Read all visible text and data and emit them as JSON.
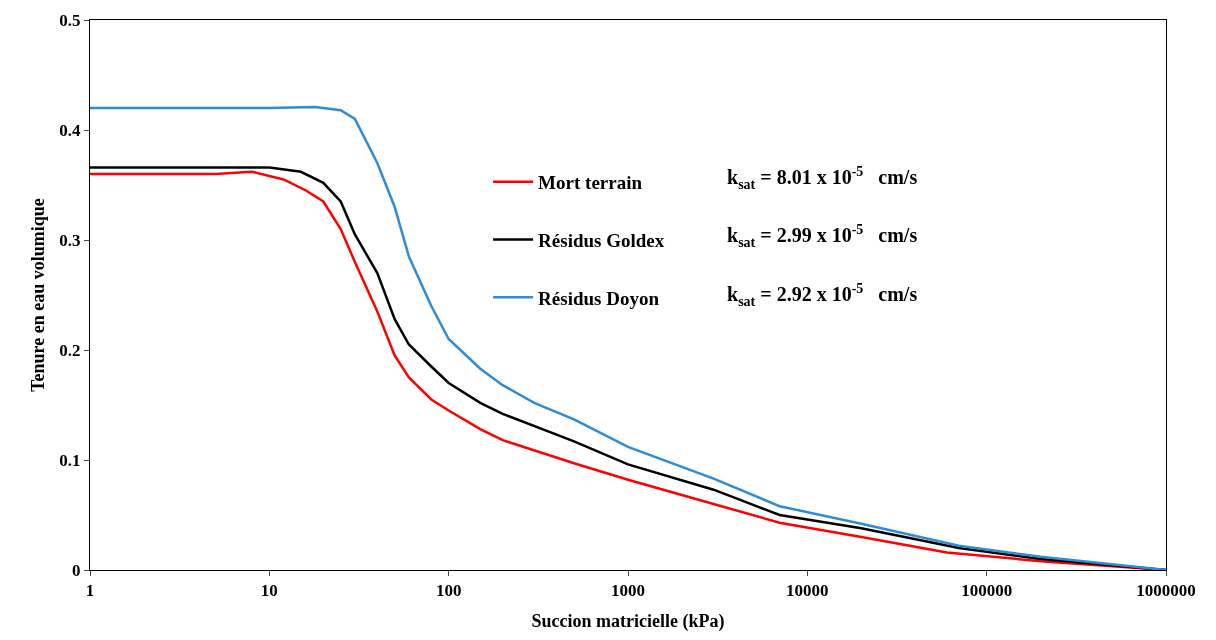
{
  "chart_data": {
    "type": "line",
    "xlabel": "Succion matricielle (kPa)",
    "ylabel": "Tenure en eau volumique",
    "log": "x",
    "xlim": [
      1,
      1000000
    ],
    "xticks": [
      1,
      10,
      100,
      1000,
      10000,
      100000,
      1000000
    ],
    "ylim": [
      0,
      0.5
    ],
    "yticks": [
      0,
      0.1,
      0.2,
      0.3,
      0.4,
      0.5
    ],
    "legend": "right",
    "marker": "none",
    "line_style": "solid",
    "series": [
      {
        "name": "Mort terrain",
        "color": "#ff0000",
        "x": [
          1,
          5,
          8,
          12,
          16,
          20,
          25,
          30,
          40,
          50,
          60,
          80,
          100,
          150,
          200,
          500,
          1000,
          3000,
          7000,
          20000,
          60000,
          200000,
          1000000
        ],
        "values": [
          0.36,
          0.36,
          0.362,
          0.355,
          0.345,
          0.335,
          0.31,
          0.28,
          0.235,
          0.195,
          0.175,
          0.155,
          0.145,
          0.128,
          0.118,
          0.097,
          0.082,
          0.06,
          0.043,
          0.03,
          0.016,
          0.008,
          0
        ]
      },
      {
        "name": "Résidus Goldex",
        "color": "#000000",
        "x": [
          1,
          10,
          15,
          20,
          25,
          30,
          40,
          50,
          60,
          80,
          100,
          150,
          200,
          500,
          1000,
          3000,
          7000,
          20000,
          70000,
          200000,
          1000000
        ],
        "values": [
          0.366,
          0.366,
          0.362,
          0.352,
          0.335,
          0.305,
          0.27,
          0.228,
          0.205,
          0.185,
          0.17,
          0.152,
          0.142,
          0.117,
          0.096,
          0.073,
          0.05,
          0.038,
          0.02,
          0.01,
          0
        ]
      },
      {
        "name": "Résidus Doyon",
        "color": "#2e8bd6",
        "x": [
          1,
          10,
          18,
          25,
          30,
          40,
          50,
          60,
          80,
          100,
          150,
          200,
          300,
          500,
          1000,
          3000,
          7000,
          20000,
          70000,
          200000,
          1000000
        ],
        "values": [
          0.42,
          0.42,
          0.421,
          0.418,
          0.41,
          0.37,
          0.33,
          0.285,
          0.24,
          0.21,
          0.183,
          0.168,
          0.152,
          0.137,
          0.112,
          0.083,
          0.058,
          0.042,
          0.022,
          0.012,
          0
        ]
      }
    ],
    "annotations": [
      "k$_{sat}$ = 8.01 x 10$^{-5}$   cm/s",
      "k$_{sat}$ = 2.99 x 10$^{-5}$   cm/s",
      "k$_{sat}$ = 2.92 x 10$^{-5}$   cm/s"
    ]
  }
}
